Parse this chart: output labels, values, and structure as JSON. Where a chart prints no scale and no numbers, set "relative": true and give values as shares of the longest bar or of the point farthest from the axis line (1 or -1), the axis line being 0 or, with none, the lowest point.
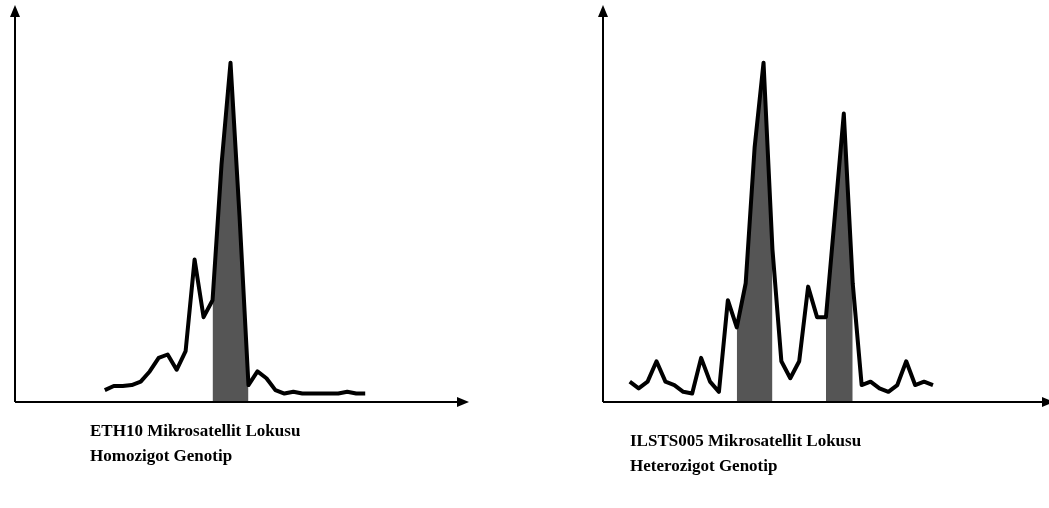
{
  "chart_data": [
    {
      "type": "line",
      "title": "ETH10 Mikrosatellit Lokusu\nHomozigot Genotip",
      "relative": true,
      "categories": [
        null,
        null,
        null,
        null,
        null,
        null,
        null,
        null,
        null,
        null,
        null,
        null,
        null,
        null,
        null,
        null,
        null,
        null,
        null,
        null,
        null,
        null,
        null,
        null,
        null,
        null,
        null,
        null,
        null,
        null,
        null,
        null,
        null,
        null,
        null,
        null,
        null,
        null,
        null,
        null,
        null,
        null,
        null,
        null,
        null,
        null,
        null,
        null,
        null,
        null
      ],
      "series": [
        {
          "color": "#000000",
          "values": [
            null,
            null,
            null,
            null,
            null,
            null,
            null,
            null,
            null,
            null,
            0.035,
            0.047,
            0.047,
            0.05,
            0.06,
            0.09,
            0.13,
            0.14,
            0.095,
            0.15,
            0.42,
            0.25,
            0.3,
            0.7,
            1,
            0.55,
            0.05,
            0.09,
            0.07,
            0.035,
            0.025,
            0.03,
            0.025,
            0.025,
            0.025,
            0.025,
            0.025,
            0.03,
            0.025,
            0.025,
            null,
            null,
            null,
            null,
            null,
            null,
            null,
            null,
            null,
            null
          ]
        },
        {
          "type": "area",
          "color": "#555555",
          "values": [
            null,
            null,
            null,
            null,
            null,
            null,
            null,
            null,
            null,
            null,
            null,
            null,
            null,
            null,
            null,
            null,
            null,
            null,
            null,
            null,
            null,
            null,
            0.3,
            0.7,
            1,
            0.55,
            0.05,
            null,
            null,
            null,
            null,
            null,
            null,
            null,
            null,
            null,
            null,
            null,
            null,
            null,
            null,
            null,
            null,
            null,
            null,
            null,
            null,
            null,
            null,
            null
          ]
        }
      ]
    },
    {
      "type": "line",
      "title": "ILSTS005 Mikrosatellit Lokusu\nHeterozigot Genotip",
      "relative": true,
      "categories": [
        null,
        null,
        null,
        null,
        null,
        null,
        null,
        null,
        null,
        null,
        null,
        null,
        null,
        null,
        null,
        null,
        null,
        null,
        null,
        null,
        null,
        null,
        null,
        null,
        null,
        null,
        null,
        null,
        null,
        null,
        null,
        null,
        null,
        null,
        null,
        null,
        null,
        null,
        null,
        null,
        null,
        null,
        null,
        null,
        null,
        null,
        null,
        null,
        null,
        null
      ],
      "series": [
        {
          "color": "#000000",
          "values": [
            null,
            null,
            null,
            0.06,
            0.04,
            0.06,
            0.12,
            0.06,
            0.05,
            0.03,
            0.025,
            0.13,
            0.06,
            0.03,
            0.3,
            0.22,
            0.35,
            0.75,
            1,
            0.45,
            0.12,
            0.07,
            0.12,
            0.34,
            0.25,
            0.25,
            0.55,
            0.85,
            0.35,
            0.05,
            0.06,
            0.04,
            0.03,
            0.05,
            0.12,
            0.05,
            0.06,
            0.05,
            null,
            null,
            null,
            null,
            null,
            null,
            null,
            null,
            null,
            null,
            null,
            null
          ]
        },
        {
          "type": "area",
          "color": "#555555",
          "values": [
            null,
            null,
            null,
            null,
            null,
            null,
            null,
            null,
            null,
            null,
            null,
            null,
            null,
            null,
            null,
            0.22,
            0.35,
            0.75,
            1,
            0.45,
            null,
            null,
            null,
            null,
            null,
            0.25,
            0.55,
            0.85,
            0.35,
            null,
            null,
            null,
            null,
            null,
            null,
            null,
            null,
            null,
            null,
            null,
            null,
            null,
            null,
            null,
            null,
            null,
            null,
            null,
            null,
            null
          ]
        }
      ]
    }
  ]
}
